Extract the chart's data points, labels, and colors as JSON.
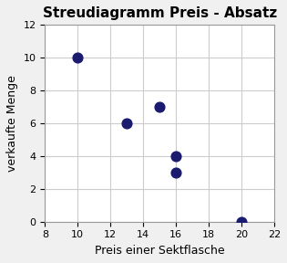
{
  "title": "Streudiagramm Preis - Absatz",
  "xlabel": "Preis einer Sektflasche",
  "ylabel": "verkaufte Menge",
  "x_values": [
    10,
    13,
    15,
    16,
    16,
    20
  ],
  "y_values": [
    10,
    6,
    7,
    4,
    3,
    0
  ],
  "xlim": [
    8,
    22
  ],
  "ylim": [
    0,
    12
  ],
  "xticks": [
    8,
    10,
    12,
    14,
    16,
    18,
    20,
    22
  ],
  "yticks": [
    0,
    2,
    4,
    6,
    8,
    10,
    12
  ],
  "dot_color": "#1a1a6e",
  "dot_size": 60,
  "background_color": "#f0f0f0",
  "plot_bg_color": "#ffffff",
  "grid_color": "#cccccc",
  "title_fontsize": 11,
  "label_fontsize": 9,
  "tick_fontsize": 8
}
